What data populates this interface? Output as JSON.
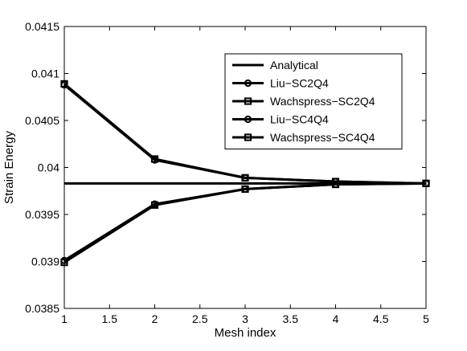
{
  "chart_data": {
    "type": "line",
    "xlabel": "Mesh index",
    "ylabel": "Strain Energy",
    "xlim": [
      1,
      5
    ],
    "ylim": [
      0.0385,
      0.0415
    ],
    "xticks": [
      1,
      1.5,
      2,
      2.5,
      3,
      3.5,
      4,
      4.5,
      5
    ],
    "xtick_labels": [
      "1",
      "1.5",
      "2",
      "2.5",
      "3",
      "3.5",
      "4",
      "4.5",
      "5"
    ],
    "yticks": [
      0.0385,
      0.039,
      0.0395,
      0.04,
      0.0405,
      0.041,
      0.0415
    ],
    "ytick_labels": [
      "0.0385",
      "0.039",
      "0.0395",
      "0.04",
      "0.0405",
      "0.041",
      "0.0415"
    ],
    "grid": false,
    "legend_position": "top-right",
    "x": [
      1,
      2,
      3,
      4,
      5
    ],
    "series": [
      {
        "name": "Analytical",
        "marker": "none",
        "values": [
          0.03983,
          0.03983,
          0.03983,
          0.03983,
          0.03983
        ],
        "color": "#000000"
      },
      {
        "name": "Liu−SC2Q4",
        "marker": "circle",
        "values": [
          0.04088,
          0.04008,
          0.03989,
          0.03985,
          0.03983
        ],
        "color": "#000000"
      },
      {
        "name": "Wachspress−SC2Q4",
        "marker": "square",
        "values": [
          0.04089,
          0.04009,
          0.03989,
          0.03985,
          0.03983
        ],
        "color": "#000000"
      },
      {
        "name": "Liu−SC4Q4",
        "marker": "circle",
        "values": [
          0.03901,
          0.03961,
          0.03977,
          0.03982,
          0.03983
        ],
        "color": "#000000"
      },
      {
        "name": "Wachspress−SC4Q4",
        "marker": "square",
        "values": [
          0.03899,
          0.0396,
          0.03977,
          0.03982,
          0.03983
        ],
        "color": "#000000"
      }
    ]
  }
}
